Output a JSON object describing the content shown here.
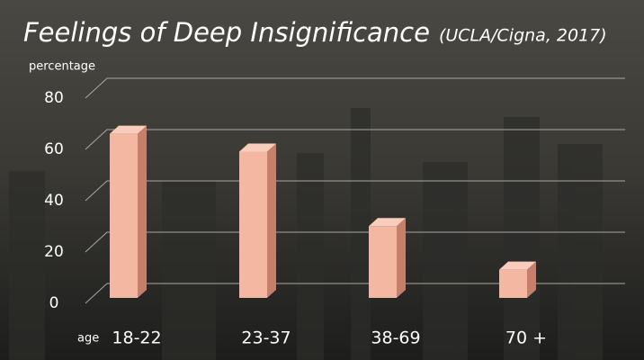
{
  "chart_data": {
    "type": "bar3d",
    "title": "Feelings of Deep Insignificance",
    "subtitle": "(UCLA/Cigna, 2017)",
    "y_label": "percentage",
    "x_label": "age",
    "categories": [
      "18-22",
      "23-37",
      "38-69",
      "70 +"
    ],
    "values": [
      64,
      57,
      28,
      11
    ],
    "color": "#f4b8a2",
    "ylim": [
      0,
      80
    ],
    "yticks": [
      0,
      20,
      40,
      60,
      80
    ],
    "grid": true
  }
}
